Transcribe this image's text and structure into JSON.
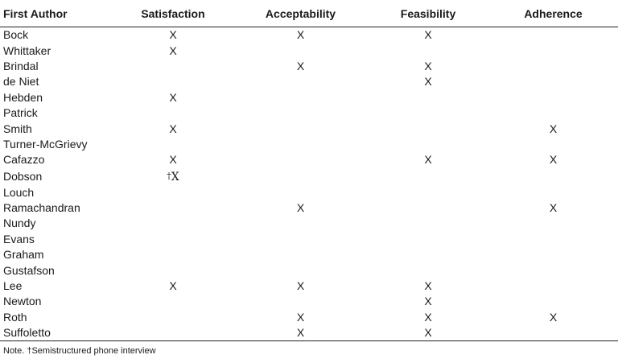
{
  "table": {
    "headers": [
      "First Author",
      "Satisfaction",
      "Acceptability",
      "Feasibility",
      "Adherence"
    ],
    "rows": [
      {
        "author": "Bock",
        "marks": [
          "X",
          "X",
          "X",
          ""
        ]
      },
      {
        "author": "Whittaker",
        "marks": [
          "X",
          "",
          "",
          ""
        ]
      },
      {
        "author": "Brindal",
        "marks": [
          "",
          "X",
          "X",
          ""
        ]
      },
      {
        "author": "de Niet",
        "marks": [
          "",
          "",
          "X",
          ""
        ]
      },
      {
        "author": "Hebden",
        "marks": [
          "X",
          "",
          "",
          ""
        ]
      },
      {
        "author": "Patrick",
        "marks": [
          "",
          "",
          "",
          ""
        ]
      },
      {
        "author": "Smith",
        "marks": [
          "X",
          "",
          "",
          "X"
        ]
      },
      {
        "author": "Turner-McGrievy",
        "marks": [
          "",
          "",
          "",
          ""
        ]
      },
      {
        "author": "Cafazzo",
        "marks": [
          "X",
          "",
          "X",
          "X"
        ]
      },
      {
        "author": "Dobson",
        "marks": [
          "†X",
          "",
          "",
          ""
        ]
      },
      {
        "author": "Louch",
        "marks": [
          "",
          "",
          "",
          ""
        ]
      },
      {
        "author": "Ramachandran",
        "marks": [
          "",
          "X",
          "",
          "X"
        ]
      },
      {
        "author": "Nundy",
        "marks": [
          "",
          "",
          "",
          ""
        ]
      },
      {
        "author": "Evans",
        "marks": [
          "",
          "",
          "",
          ""
        ]
      },
      {
        "author": "Graham",
        "marks": [
          "",
          "",
          "",
          ""
        ]
      },
      {
        "author": "Gustafson",
        "marks": [
          "",
          "",
          "",
          ""
        ]
      },
      {
        "author": "Lee",
        "marks": [
          "X",
          "X",
          "X",
          ""
        ]
      },
      {
        "author": "Newton",
        "marks": [
          "",
          "",
          "X",
          ""
        ]
      },
      {
        "author": "Roth",
        "marks": [
          "",
          "X",
          "X",
          "X"
        ]
      },
      {
        "author": "Suffoletto",
        "marks": [
          "",
          "X",
          "X",
          ""
        ]
      }
    ]
  },
  "note": "Note. †Semistructured phone interview"
}
